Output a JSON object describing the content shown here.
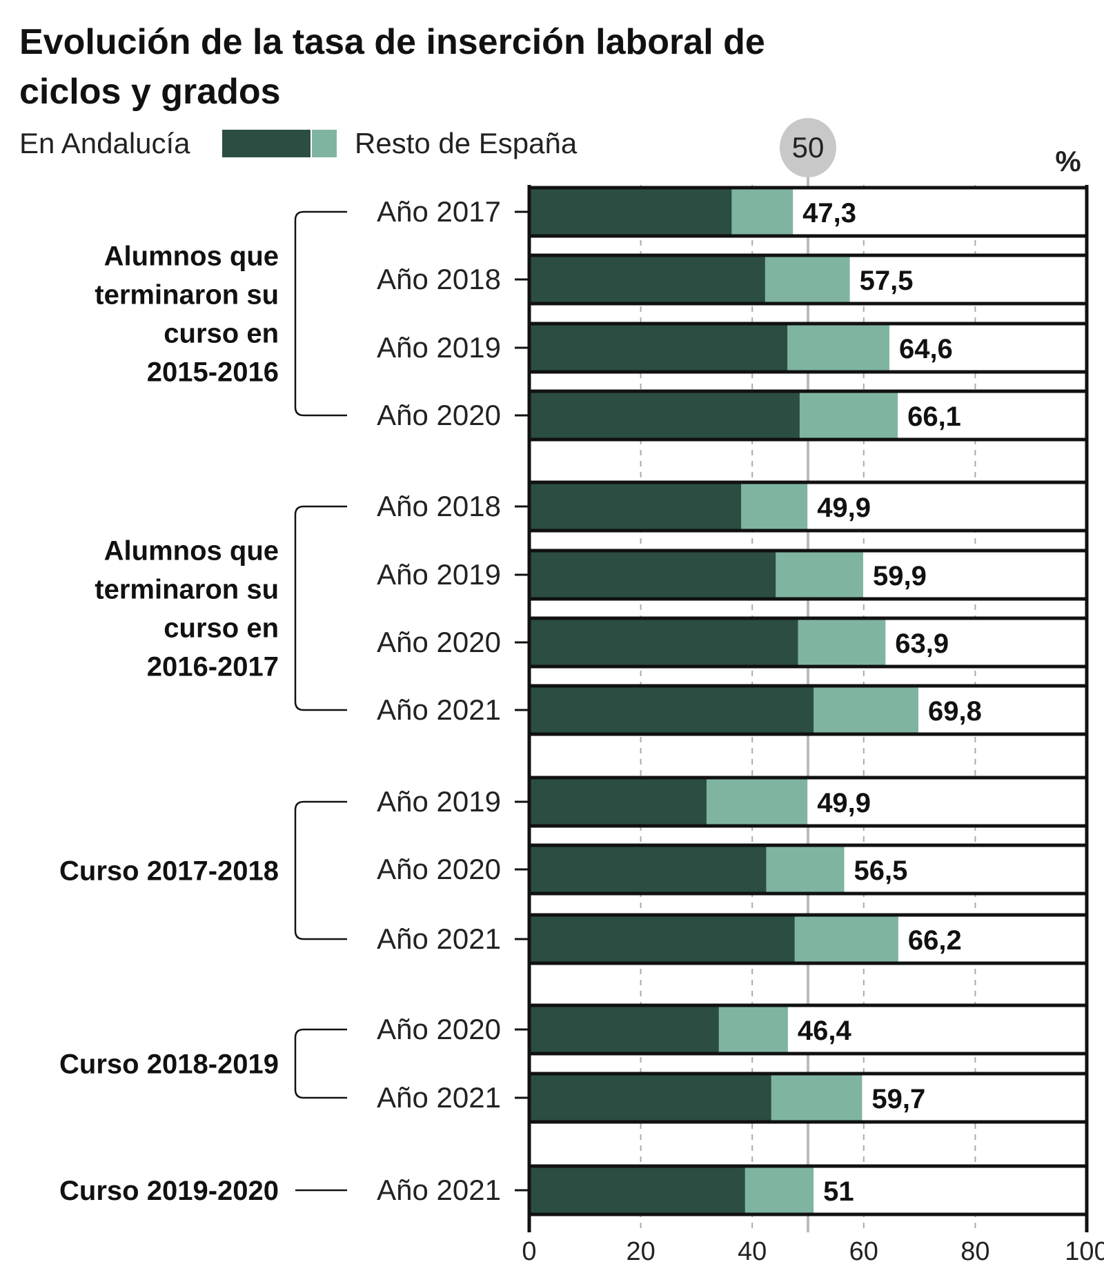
{
  "chart_data": {
    "type": "bar",
    "orientation": "horizontal",
    "title": "Evolución de la tasa de inserción laboral de ciclos y grados",
    "title_lines": [
      "Evolución de la tasa de inserción laboral de",
      "ciclos y grados"
    ],
    "legend": {
      "andalucia": "En Andalucía",
      "resto": "Resto de España",
      "placement": "top-left"
    },
    "unit_label": "%",
    "reference_line": {
      "value": 50,
      "label": "50"
    },
    "xlim": [
      0,
      100
    ],
    "xticks": [
      "0",
      "20",
      "40",
      "60",
      "80",
      "100"
    ],
    "grid": true,
    "colors": {
      "andalucia": "#2b4d42",
      "resto": "#7fb5a0"
    },
    "groups": [
      {
        "label_lines": [
          "Alumnos que",
          "terminaron su",
          "curso en",
          "2015-2016"
        ],
        "rows": [
          0,
          1,
          2,
          3
        ]
      },
      {
        "label_lines": [
          "Alumnos que",
          "terminaron su",
          "curso en",
          "2016-2017"
        ],
        "rows": [
          4,
          5,
          6,
          7
        ]
      },
      {
        "label_lines": [
          "Curso 2017-2018"
        ],
        "rows": [
          8,
          9,
          10
        ]
      },
      {
        "label_lines": [
          "Curso 2018-2019"
        ],
        "rows": [
          11,
          12
        ]
      },
      {
        "label_lines": [
          "Curso 2019-2020"
        ],
        "rows": [
          13
        ]
      }
    ],
    "categories": [
      "Año 2017",
      "Año 2018",
      "Año 2019",
      "Año 2020",
      "Año 2018",
      "Año 2019",
      "Año 2020",
      "Año 2021",
      "Año 2019",
      "Año 2020",
      "Año 2021",
      "Año 2020",
      "Año 2021",
      "Año 2021"
    ],
    "series": [
      {
        "name": "En Andalucía",
        "values": [
          36.3,
          42.3,
          46.3,
          48.5,
          38.0,
          44.2,
          48.2,
          51.0,
          31.8,
          42.5,
          47.6,
          34.0,
          43.4,
          38.7
        ]
      },
      {
        "name": "Resto de España",
        "values": [
          47.3,
          57.5,
          64.6,
          66.1,
          49.9,
          59.9,
          63.9,
          69.8,
          49.9,
          56.5,
          66.2,
          46.4,
          59.7,
          51
        ]
      }
    ],
    "value_labels": [
      "47,3",
      "57,5",
      "64,6",
      "66,1",
      "49,9",
      "59,9",
      "63,9",
      "69,8",
      "49,9",
      "56,5",
      "66,2",
      "46,4",
      "59,7",
      "51"
    ]
  }
}
